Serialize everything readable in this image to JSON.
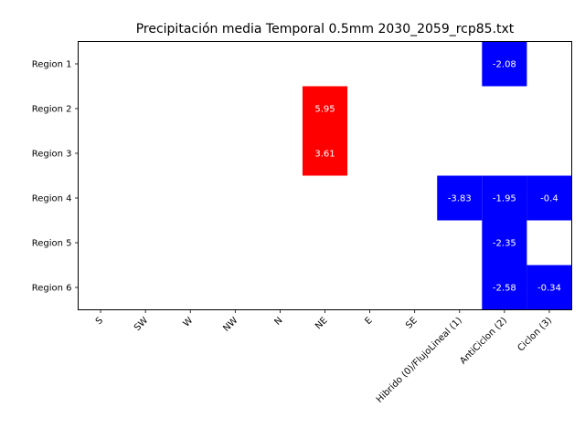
{
  "chart_data": {
    "type": "heatmap",
    "title": "Precipitación media Temporal 0.5mm 2030_2059_rcp85.txt",
    "xlabel": "",
    "ylabel": "",
    "x_categories": [
      "S",
      "SW",
      "W",
      "NW",
      "N",
      "NE",
      "E",
      "SE",
      "Hibrido (0)/FlujoLineal (1)",
      "AntiCiclon (2)",
      "Ciclon (3)"
    ],
    "y_categories": [
      "Region 1",
      "Region 2",
      "Region 3",
      "Region 4",
      "Region 5",
      "Region 6"
    ],
    "values": [
      [
        null,
        null,
        null,
        null,
        null,
        null,
        null,
        null,
        null,
        -2.08,
        null
      ],
      [
        null,
        null,
        null,
        null,
        null,
        5.95,
        null,
        null,
        null,
        null,
        null
      ],
      [
        null,
        null,
        null,
        null,
        null,
        3.61,
        null,
        null,
        null,
        null,
        null
      ],
      [
        null,
        null,
        null,
        null,
        null,
        null,
        null,
        null,
        -3.83,
        -1.95,
        -0.4
      ],
      [
        null,
        null,
        null,
        null,
        null,
        null,
        null,
        null,
        null,
        -2.35,
        null
      ],
      [
        null,
        null,
        null,
        null,
        null,
        null,
        null,
        null,
        null,
        -2.58,
        -0.34
      ]
    ],
    "positive_color": "#ff0000",
    "negative_color": "#0000ff",
    "background_color": "#ffffff",
    "grid": false,
    "legend": "none"
  }
}
